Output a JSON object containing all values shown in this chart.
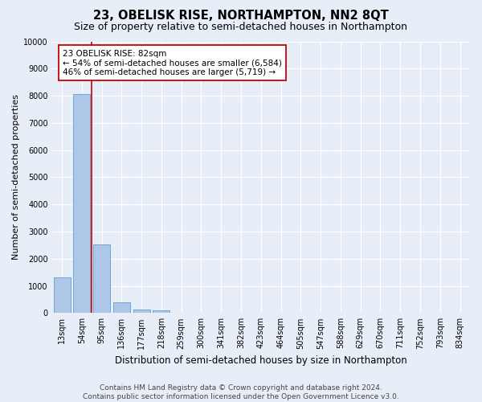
{
  "title": "23, OBELISK RISE, NORTHAMPTON, NN2 8QT",
  "subtitle": "Size of property relative to semi-detached houses in Northampton",
  "xlabel": "Distribution of semi-detached houses by size in Northampton",
  "ylabel": "Number of semi-detached properties",
  "footer_line1": "Contains HM Land Registry data © Crown copyright and database right 2024.",
  "footer_line2": "Contains public sector information licensed under the Open Government Licence v3.0.",
  "categories": [
    "13sqm",
    "54sqm",
    "95sqm",
    "136sqm",
    "177sqm",
    "218sqm",
    "259sqm",
    "300sqm",
    "341sqm",
    "382sqm",
    "423sqm",
    "464sqm",
    "505sqm",
    "547sqm",
    "588sqm",
    "629sqm",
    "670sqm",
    "711sqm",
    "752sqm",
    "793sqm",
    "834sqm"
  ],
  "values": [
    1320,
    8050,
    2520,
    390,
    140,
    100,
    0,
    0,
    0,
    0,
    0,
    0,
    0,
    0,
    0,
    0,
    0,
    0,
    0,
    0,
    0
  ],
  "bar_color": "#aec6e8",
  "bar_edge_color": "#5a9fd4",
  "vline_x": 1.5,
  "annotation_text": "23 OBELISK RISE: 82sqm\n← 54% of semi-detached houses are smaller (6,584)\n46% of semi-detached houses are larger (5,719) →",
  "annotation_box_color": "#ffffff",
  "annotation_box_edge": "#cc0000",
  "vline_color": "#cc0000",
  "ylim": [
    0,
    10000
  ],
  "yticks": [
    0,
    1000,
    2000,
    3000,
    4000,
    5000,
    6000,
    7000,
    8000,
    9000,
    10000
  ],
  "bg_color": "#e8eef8",
  "plot_bg": "#e8eef8",
  "grid_color": "#ffffff",
  "title_fontsize": 10.5,
  "subtitle_fontsize": 9,
  "annot_fontsize": 7.5,
  "ylabel_fontsize": 8,
  "xlabel_fontsize": 8.5,
  "tick_fontsize": 7,
  "footer_fontsize": 6.5
}
